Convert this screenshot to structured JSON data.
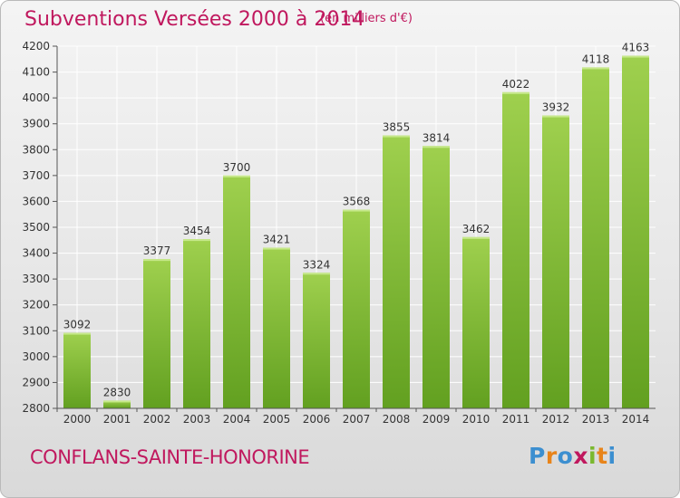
{
  "header": {
    "title": "Subventions Versées 2000 à 2014",
    "unit": "(en milliers d'€)"
  },
  "footer": {
    "location": "CONFLANS-SAINTE-HONORINE",
    "logo_text": "Proxiti"
  },
  "colors": {
    "title": "#c0185e",
    "bar_top": "#9fd04e",
    "bar_bottom": "#62a020",
    "grid": "#ffffff",
    "logo": [
      "#3c8fd0",
      "#e8841a",
      "#3c8fd0",
      "#c0185e",
      "#7ab82e",
      "#e8841a",
      "#3c8fd0"
    ]
  },
  "chart_data": {
    "type": "bar",
    "title": "Subventions Versées 2000 à 2014",
    "subtitle": "(en milliers d'€)",
    "xlabel": "",
    "ylabel": "",
    "categories": [
      "2000",
      "2001",
      "2002",
      "2003",
      "2004",
      "2005",
      "2006",
      "2007",
      "2008",
      "2009",
      "2010",
      "2011",
      "2012",
      "2013",
      "2014"
    ],
    "values": [
      3092,
      2830,
      3377,
      3454,
      3700,
      3421,
      3324,
      3568,
      3855,
      3814,
      3462,
      4022,
      3932,
      4118,
      4163
    ],
    "ylim": [
      2800,
      4200
    ],
    "yticks": [
      2800,
      2900,
      3000,
      3100,
      3200,
      3300,
      3400,
      3500,
      3600,
      3700,
      3800,
      3900,
      4000,
      4100,
      4200
    ],
    "grid": true,
    "data_labels": true
  }
}
